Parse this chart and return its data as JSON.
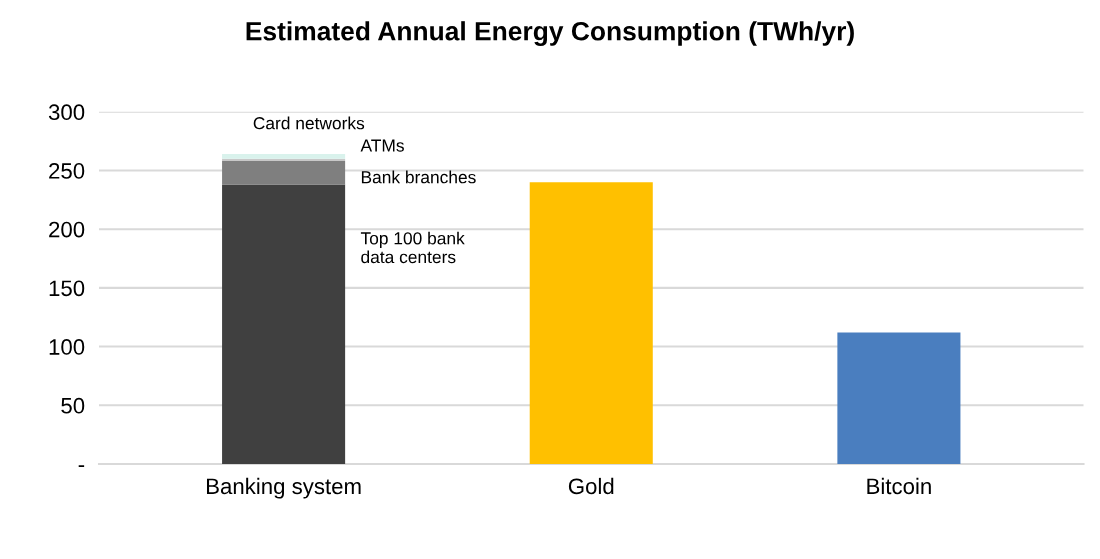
{
  "chart_data": {
    "type": "bar",
    "title": "Estimated Annual Energy Consumption (TWh/yr)",
    "categories": [
      "Banking system",
      "Gold",
      "Bitcoin"
    ],
    "stacked": true,
    "series": [
      {
        "name": "Top 100 bank\ndata centers",
        "color": "#404040",
        "values": [
          238,
          null,
          null
        ]
      },
      {
        "name": "Bank branches",
        "color": "#7f7f7f",
        "values": [
          20,
          null,
          null
        ]
      },
      {
        "name": "ATMs",
        "color": "#c8c8c8",
        "values": [
          2,
          null,
          null
        ]
      },
      {
        "name": "Card networks",
        "color": "#d9f2ec",
        "values": [
          4,
          null,
          null
        ]
      },
      {
        "colors": [
          null,
          "#ffc000",
          "#4a7ebf"
        ],
        "values": [
          null,
          240,
          112
        ]
      }
    ],
    "ylim": [
      0,
      300
    ],
    "yticks": [
      {
        "value": 0,
        "label": "-"
      },
      50,
      100,
      150,
      200,
      250,
      300
    ],
    "grid": "y"
  }
}
